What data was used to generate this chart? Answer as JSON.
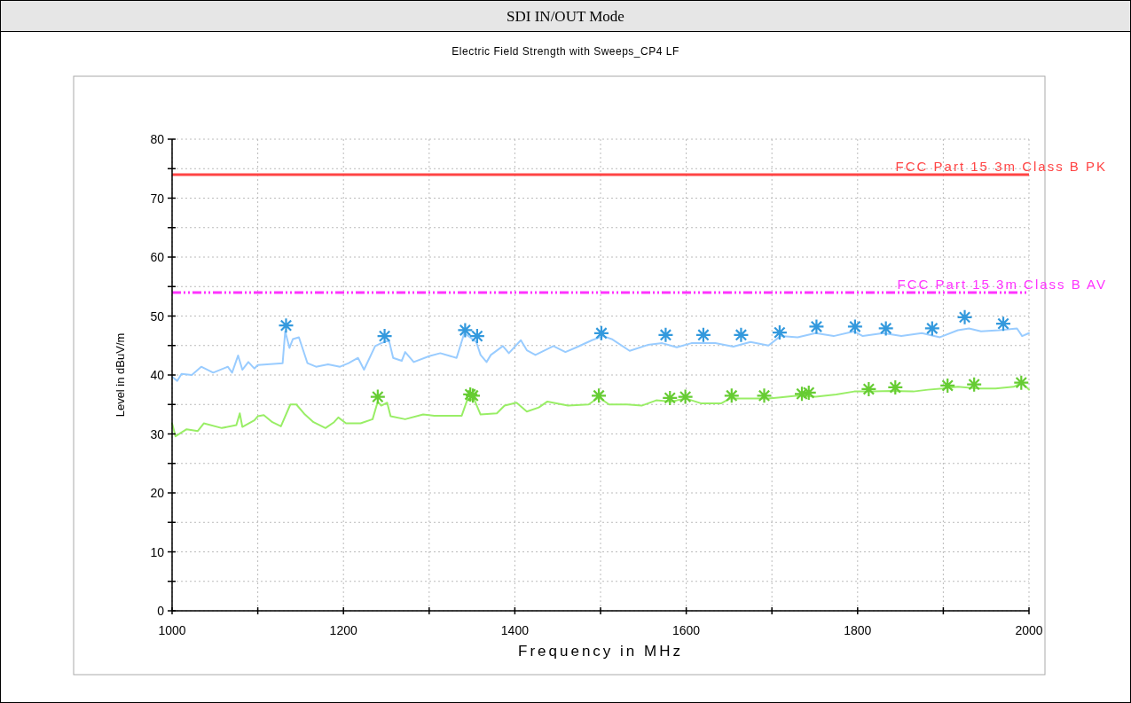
{
  "chart_data": {
    "type": "line",
    "title": "SDI IN/OUT Mode",
    "subtitle": "Electric Field Strength with Sweeps_CP4 LF",
    "xlabel": "Frequency in MHz",
    "ylabel": "Level in dBuV/m",
    "xlim": [
      1000,
      2000
    ],
    "ylim": [
      0,
      80
    ],
    "xticks": [
      1000,
      {
        "value": 1100,
        "label": null
      },
      1200,
      {
        "value": 1300,
        "label": null
      },
      1400,
      {
        "value": 1500,
        "label": null
      },
      1600,
      {
        "value": 1700,
        "label": null
      },
      1800,
      {
        "value": 1900,
        "label": null
      },
      2000
    ],
    "yticks": [
      0,
      {
        "value": 5,
        "label": null
      },
      10,
      {
        "value": 15,
        "label": null
      },
      20,
      {
        "value": 25,
        "label": null
      },
      30,
      {
        "value": 35,
        "label": null
      },
      40,
      {
        "value": 45,
        "label": null
      },
      50,
      {
        "value": 55,
        "label": null
      },
      60,
      {
        "value": 65,
        "label": null
      },
      70,
      {
        "value": 75,
        "label": null
      },
      80
    ],
    "grid": true,
    "ref_lines": [
      {
        "axis": "y",
        "value": 74,
        "label": "FCC Part 15 3m Class B PK",
        "color": "#ff4444",
        "line_style": "solid"
      },
      {
        "axis": "y",
        "value": 54,
        "label": "FCC Part 15 3m Class B AV",
        "color": "#ff33ff",
        "line_style": "dashdot"
      }
    ],
    "series": [
      {
        "color": "#99ccff",
        "marker": "none",
        "x": [
          1000,
          1006,
          1011,
          1023,
          1034,
          1048,
          1065,
          1070,
          1077,
          1082,
          1089,
          1096,
          1100,
          1129,
          1132,
          1137,
          1141,
          1148,
          1158,
          1168,
          1182,
          1196,
          1206,
          1217,
          1224,
          1237,
          1244,
          1253,
          1258,
          1268,
          1272,
          1282,
          1300,
          1313,
          1332,
          1341,
          1355,
          1360,
          1367,
          1372,
          1386,
          1393,
          1407,
          1414,
          1424,
          1445,
          1459,
          1472,
          1490,
          1503,
          1513,
          1534,
          1555,
          1572,
          1589,
          1606,
          1634,
          1655,
          1675,
          1696,
          1710,
          1730,
          1751,
          1772,
          1796,
          1806,
          1830,
          1851,
          1875,
          1896,
          1917,
          1930,
          1944,
          1965,
          1986,
          1992,
          2000
        ],
        "values": [
          39.7,
          39,
          40.2,
          40,
          41.4,
          40.4,
          41.4,
          40.4,
          43.3,
          40.9,
          42.2,
          41.1,
          41.7,
          42,
          47.4,
          44.6,
          46.1,
          46.4,
          42,
          41.4,
          41.8,
          41.4,
          42,
          42.9,
          40.9,
          44.9,
          45.4,
          45.9,
          42.9,
          42.4,
          43.9,
          42.2,
          43.2,
          43.7,
          42.9,
          47.1,
          45.6,
          43.4,
          42.2,
          43.4,
          44.9,
          43.7,
          45.9,
          44.2,
          43.4,
          44.9,
          43.9,
          44.7,
          45.9,
          46.6,
          46.1,
          44.1,
          45.1,
          45.4,
          44.7,
          45.4,
          45.4,
          44.8,
          45.6,
          45,
          46.6,
          46.4,
          47.1,
          46.6,
          47.4,
          46.6,
          47.1,
          46.6,
          47.1,
          46.4,
          47.6,
          47.9,
          47.4,
          47.6,
          47.9,
          46.6,
          47.1
        ]
      },
      {
        "color": "#99ee66",
        "marker": "none",
        "x": [
          1000,
          1004,
          1017,
          1030,
          1037,
          1058,
          1075,
          1079,
          1082,
          1096,
          1100,
          1107,
          1117,
          1127,
          1138,
          1145,
          1155,
          1165,
          1179,
          1189,
          1194,
          1203,
          1220,
          1234,
          1240,
          1244,
          1251,
          1255,
          1272,
          1293,
          1306,
          1324,
          1338,
          1345,
          1353,
          1360,
          1379,
          1388,
          1402,
          1414,
          1428,
          1438,
          1462,
          1486,
          1498,
          1510,
          1531,
          1548,
          1565,
          1582,
          1600,
          1617,
          1641,
          1651,
          1675,
          1696,
          1710,
          1730,
          1751,
          1775,
          1796,
          1817,
          1841,
          1865,
          1882,
          1899,
          1917,
          1941,
          1961,
          1982,
          1992,
          2000
        ],
        "values": [
          31.8,
          29.6,
          30.8,
          30.5,
          31.8,
          31,
          31.5,
          33.5,
          31.2,
          32.3,
          33,
          33.2,
          32,
          31.3,
          35,
          35,
          33.3,
          32,
          31,
          32,
          32.8,
          31.8,
          31.8,
          32.5,
          35.5,
          34.8,
          35.3,
          33,
          32.5,
          33.3,
          33.1,
          33.1,
          33.1,
          36,
          35.7,
          33.3,
          33.5,
          34.8,
          35.3,
          33.8,
          34.5,
          35.5,
          34.8,
          35,
          36.2,
          35,
          35,
          34.8,
          35.7,
          35.5,
          36,
          35.2,
          35.2,
          36,
          36,
          36,
          36.2,
          36.5,
          36.3,
          36.7,
          37.2,
          37.2,
          37.3,
          37.2,
          37.5,
          37.7,
          38,
          37.7,
          37.7,
          38,
          38.7,
          37.5
        ]
      },
      {
        "type": "scatter",
        "color": "#3399dd",
        "marker": "cross",
        "x": [
          1133,
          1248,
          1342,
          1356,
          1501,
          1576,
          1620,
          1664,
          1709,
          1752,
          1797,
          1833,
          1887,
          1925,
          1970
        ],
        "values": [
          48.4,
          46.6,
          47.6,
          46.6,
          47.1,
          46.8,
          46.8,
          46.8,
          47.2,
          48.2,
          48.2,
          47.9,
          47.9,
          49.8,
          48.7
        ]
      },
      {
        "type": "scatter",
        "color": "#66cc33",
        "marker": "cross",
        "x": [
          1240,
          1348,
          1351,
          1498,
          1581,
          1599,
          1653,
          1691,
          1735,
          1743,
          1813,
          1844,
          1905,
          1936,
          1991
        ],
        "values": [
          36.3,
          36.7,
          36.5,
          36.5,
          36.1,
          36.3,
          36.5,
          36.5,
          36.8,
          37,
          37.6,
          37.9,
          38.2,
          38.4,
          38.7
        ]
      }
    ]
  }
}
